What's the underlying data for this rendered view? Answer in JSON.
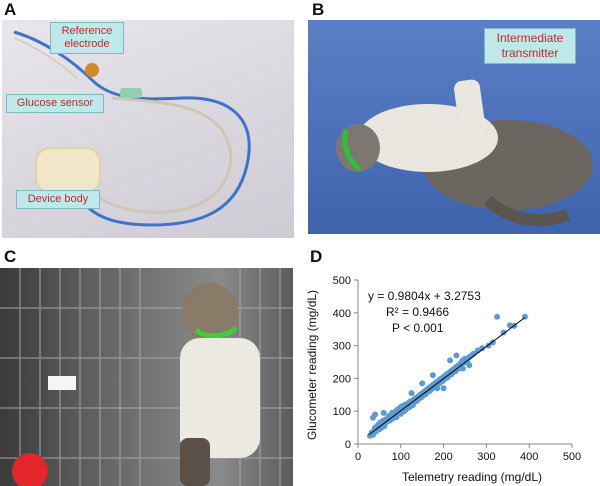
{
  "panels": {
    "a": {
      "letter": "A",
      "labels": {
        "reference_electrode": "Reference electrode",
        "glucose_sensor": "Glucose sensor",
        "device_body": "Device body"
      }
    },
    "b": {
      "letter": "B",
      "labels": {
        "intermediate_transmitter": "Intermediate transmitter"
      }
    },
    "c": {
      "letter": "C"
    },
    "d": {
      "letter": "D",
      "annotations": {
        "equation": "y = 0.9804x + 3.2753",
        "r_squared": "R² = 0.9466",
        "p_value": "P < 0.001"
      }
    }
  },
  "colors": {
    "point": "#5b9bd5",
    "trendline": "#000000",
    "callout_fill": "#bfe8ea",
    "callout_text": "#c0282a"
  },
  "chart_data": {
    "type": "scatter",
    "xlabel": "Telemetry reading (mg/dL)",
    "ylabel": "Glucometer reading (mg/dL)",
    "xlim": [
      0,
      500
    ],
    "ylim": [
      0,
      500
    ],
    "xticks": [
      "0",
      "100",
      "200",
      "300",
      "400",
      "500"
    ],
    "yticks": [
      "0",
      "100",
      "200",
      "300",
      "400",
      "500"
    ],
    "trendline": {
      "slope": 0.9804,
      "intercept": 3.2753,
      "x_range": [
        25,
        390
      ]
    },
    "grid": false,
    "points": [
      [
        28,
        25
      ],
      [
        32,
        35
      ],
      [
        35,
        28
      ],
      [
        38,
        42
      ],
      [
        40,
        50
      ],
      [
        42,
        38
      ],
      [
        45,
        55
      ],
      [
        48,
        60
      ],
      [
        50,
        45
      ],
      [
        52,
        65
      ],
      [
        55,
        50
      ],
      [
        58,
        70
      ],
      [
        60,
        62
      ],
      [
        62,
        55
      ],
      [
        65,
        75
      ],
      [
        68,
        68
      ],
      [
        70,
        80
      ],
      [
        72,
        85
      ],
      [
        75,
        72
      ],
      [
        78,
        90
      ],
      [
        80,
        95
      ],
      [
        82,
        78
      ],
      [
        85,
        88
      ],
      [
        88,
        100
      ],
      [
        90,
        82
      ],
      [
        92,
        105
      ],
      [
        95,
        98
      ],
      [
        98,
        110
      ],
      [
        100,
        92
      ],
      [
        102,
        115
      ],
      [
        105,
        108
      ],
      [
        108,
        100
      ],
      [
        110,
        120
      ],
      [
        112,
        105
      ],
      [
        115,
        118
      ],
      [
        118,
        125
      ],
      [
        120,
        112
      ],
      [
        122,
        130
      ],
      [
        125,
        122
      ],
      [
        128,
        118
      ],
      [
        130,
        135
      ],
      [
        132,
        128
      ],
      [
        135,
        140
      ],
      [
        138,
        132
      ],
      [
        140,
        145
      ],
      [
        142,
        138
      ],
      [
        145,
        150
      ],
      [
        148,
        142
      ],
      [
        150,
        155
      ],
      [
        152,
        148
      ],
      [
        155,
        160
      ],
      [
        158,
        152
      ],
      [
        160,
        165
      ],
      [
        162,
        158
      ],
      [
        165,
        170
      ],
      [
        168,
        162
      ],
      [
        170,
        175
      ],
      [
        172,
        168
      ],
      [
        175,
        180
      ],
      [
        178,
        172
      ],
      [
        180,
        185
      ],
      [
        182,
        178
      ],
      [
        185,
        190
      ],
      [
        188,
        182
      ],
      [
        190,
        195
      ],
      [
        192,
        188
      ],
      [
        195,
        200
      ],
      [
        198,
        192
      ],
      [
        200,
        205
      ],
      [
        202,
        198
      ],
      [
        205,
        210
      ],
      [
        208,
        202
      ],
      [
        210,
        215
      ],
      [
        212,
        208
      ],
      [
        215,
        220
      ],
      [
        218,
        212
      ],
      [
        220,
        225
      ],
      [
        222,
        218
      ],
      [
        225,
        230
      ],
      [
        228,
        222
      ],
      [
        230,
        235
      ],
      [
        232,
        228
      ],
      [
        235,
        240
      ],
      [
        238,
        232
      ],
      [
        240,
        245
      ],
      [
        242,
        250
      ],
      [
        245,
        255
      ],
      [
        248,
        248
      ],
      [
        250,
        260
      ],
      [
        255,
        252
      ],
      [
        260,
        265
      ],
      [
        265,
        270
      ],
      [
        270,
        275
      ],
      [
        280,
        285
      ],
      [
        290,
        292
      ],
      [
        305,
        300
      ],
      [
        315,
        310
      ],
      [
        325,
        388
      ],
      [
        340,
        340
      ],
      [
        355,
        362
      ],
      [
        365,
        360
      ],
      [
        390,
        388
      ],
      [
        60,
        95
      ],
      [
        40,
        90
      ],
      [
        35,
        80
      ],
      [
        150,
        185
      ],
      [
        200,
        170
      ],
      [
        230,
        270
      ],
      [
        215,
        255
      ],
      [
        245,
        230
      ],
      [
        175,
        210
      ],
      [
        125,
        155
      ],
      [
        185,
        170
      ],
      [
        260,
        240
      ]
    ]
  }
}
